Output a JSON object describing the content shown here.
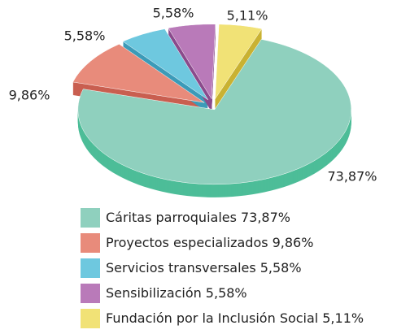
{
  "chart_data": {
    "type": "pie",
    "categories": [
      "Cáritas parroquiales",
      "Proyectos especializados",
      "Servicios transversales",
      "Sensibilización",
      "Fundación por la Inclusión Social"
    ],
    "values": [
      73.87,
      9.86,
      5.58,
      5.58,
      5.11
    ],
    "value_labels": [
      "73,87%",
      "9,86%",
      "5,58%",
      "5,58%",
      "5,11%"
    ],
    "colors": [
      "#8fd0be",
      "#e88b7b",
      "#6ec8df",
      "#b97ab9",
      "#f1e276"
    ],
    "side_colors": [
      "#4dbd98",
      "#c95f50",
      "#3c9bb8",
      "#8b4b8c",
      "#c9b232"
    ]
  }
}
